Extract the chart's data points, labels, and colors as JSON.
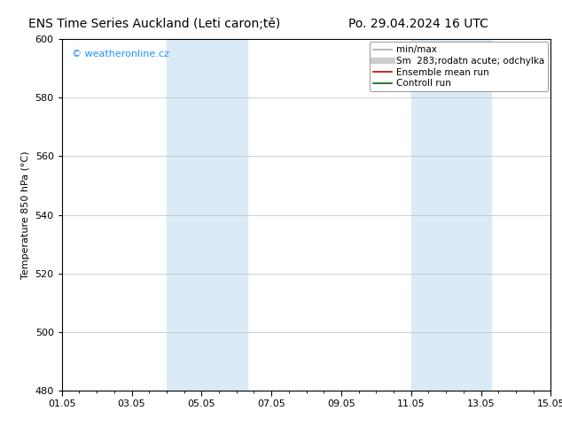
{
  "title_left": "ENS Time Series Auckland (Leti caron;tě)",
  "title_right": "Po. 29.04.2024 16 UTC",
  "ylabel": "Temperature 850 hPa (°C)",
  "ylim": [
    480,
    600
  ],
  "yticks": [
    480,
    500,
    520,
    540,
    560,
    580,
    600
  ],
  "xticks": [
    "01.05",
    "03.05",
    "05.05",
    "07.05",
    "09.05",
    "11.05",
    "13.05",
    "15.05"
  ],
  "xtick_positions": [
    0,
    2,
    4,
    6,
    8,
    10,
    12,
    14
  ],
  "shaded_bands": [
    {
      "x_start": 3.0,
      "x_end": 5.3,
      "color": "#daeaf7"
    },
    {
      "x_start": 10.0,
      "x_end": 12.3,
      "color": "#daeaf7"
    }
  ],
  "grid_color": "#bbbbbb",
  "background_color": "#ffffff",
  "plot_bg_color": "#ffffff",
  "watermark_text": "© weatheronline.cz",
  "watermark_color": "#1e90ff",
  "legend_entries": [
    {
      "label": "min/max",
      "color": "#aaaaaa",
      "lw": 1.2,
      "style": "solid"
    },
    {
      "label": "Sm  283;rodatn acute; odchylka",
      "color": "#cccccc",
      "lw": 5,
      "style": "solid"
    },
    {
      "label": "Ensemble mean run",
      "color": "#cc0000",
      "lw": 1.2,
      "style": "solid"
    },
    {
      "label": "Controll run",
      "color": "#006400",
      "lw": 1.2,
      "style": "solid"
    }
  ],
  "title_fontsize": 10,
  "axis_label_fontsize": 8,
  "tick_fontsize": 8,
  "legend_fontsize": 7.5,
  "watermark_fontsize": 8
}
